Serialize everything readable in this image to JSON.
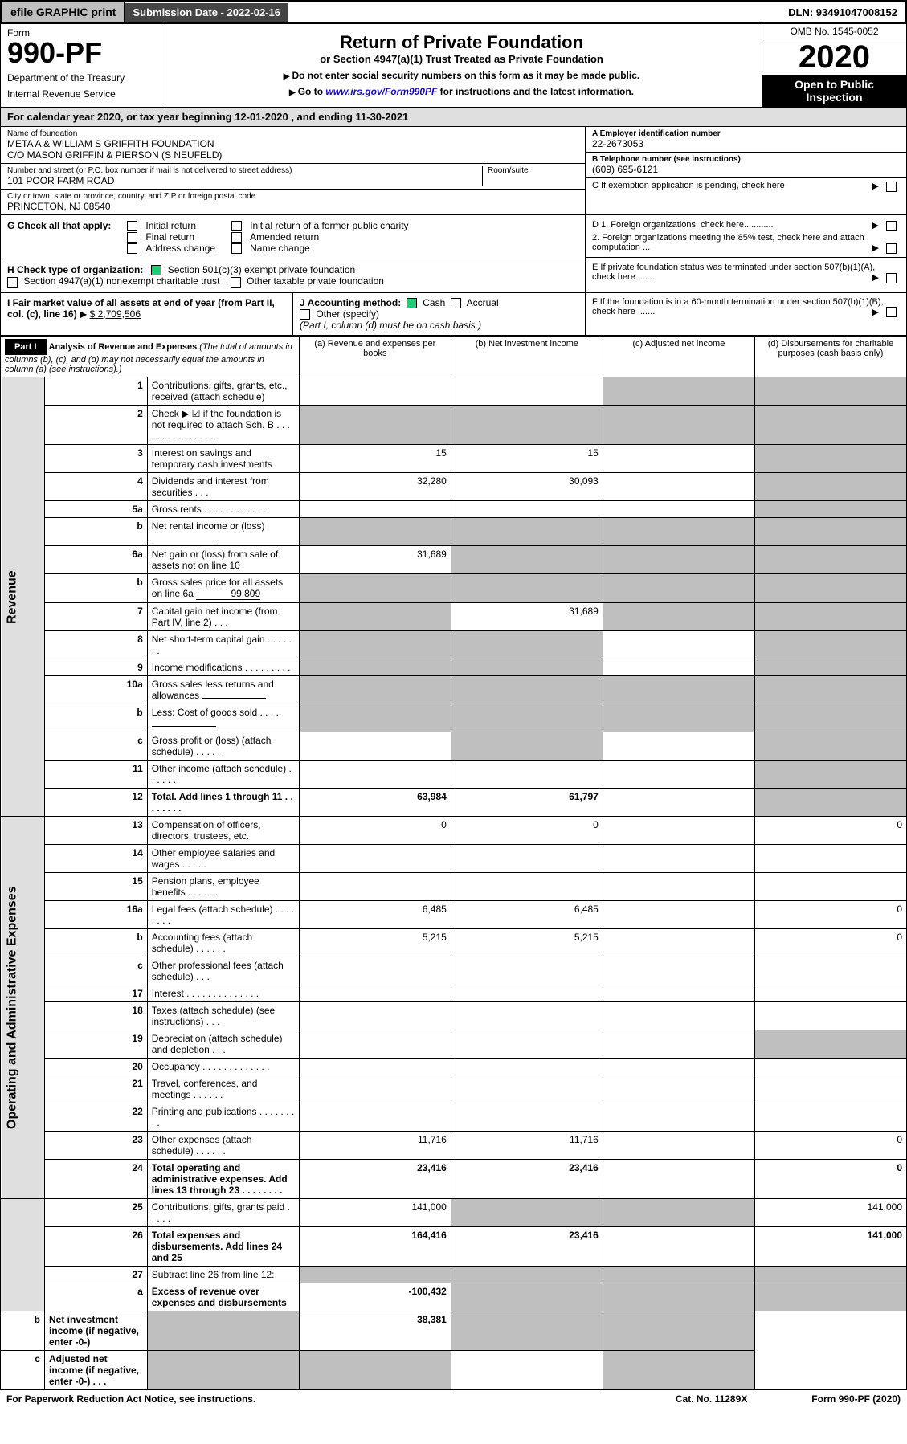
{
  "topbar": {
    "efile": "efile GRAPHIC print",
    "subdate_label": "Submission Date - 2022-02-16",
    "dln": "DLN: 93491047008152"
  },
  "header": {
    "form_label": "Form",
    "form_num": "990-PF",
    "dept": "Department of the Treasury",
    "irs": "Internal Revenue Service",
    "title": "Return of Private Foundation",
    "subtitle": "or Section 4947(a)(1) Trust Treated as Private Foundation",
    "instr1": "Do not enter social security numbers on this form as it may be made public.",
    "instr2_pre": "Go to ",
    "instr2_link": "www.irs.gov/Form990PF",
    "instr2_post": " for instructions and the latest information.",
    "omb": "OMB No. 1545-0052",
    "year": "2020",
    "open": "Open to Public Inspection"
  },
  "calyear": "For calendar year 2020, or tax year beginning 12-01-2020                               , and ending 11-30-2021",
  "entity": {
    "name_lab": "Name of foundation",
    "name": "META A & WILLIAM S GRIFFITH FOUNDATION",
    "name2": "C/O MASON GRIFFIN & PIERSON (S NEUFELD)",
    "addr_lab": "Number and street (or P.O. box number if mail is not delivered to street address)",
    "addr": "101 POOR FARM ROAD",
    "room_lab": "Room/suite",
    "city_lab": "City or town, state or province, country, and ZIP or foreign postal code",
    "city": "PRINCETON, NJ  08540",
    "a_lab": "A Employer identification number",
    "ein": "22-2673053",
    "b_lab": "B Telephone number (see instructions)",
    "phone": "(609) 695-6121",
    "c_lab": "C If exemption application is pending, check here"
  },
  "g": {
    "label": "G Check all that apply:",
    "opts": [
      "Initial return",
      "Final return",
      "Address change",
      "Initial return of a former public charity",
      "Amended return",
      "Name change"
    ],
    "d1": "D 1. Foreign organizations, check here............",
    "d2": "2. Foreign organizations meeting the 85% test, check here and attach computation ...",
    "e": "E   If private foundation status was terminated under section 507(b)(1)(A), check here .......",
    "h_lab": "H Check type of organization:",
    "h1": "Section 501(c)(3) exempt private foundation",
    "h2": "Section 4947(a)(1) nonexempt charitable trust",
    "h3": "Other taxable private foundation",
    "i_lab": "I Fair market value of all assets at end of year (from Part II, col. (c), line 16)",
    "i_val": "$  2,709,506",
    "j_lab": "J Accounting method:",
    "j_cash": "Cash",
    "j_acc": "Accrual",
    "j_other": "Other (specify)",
    "j_note": "(Part I, column (d) must be on cash basis.)",
    "f_lab": "F   If the foundation is in a 60-month termination under section 507(b)(1)(B), check here ......."
  },
  "part1": {
    "label": "Part I",
    "title": "Analysis of Revenue and Expenses",
    "note": " (The total of amounts in columns (b), (c), and (d) may not necessarily equal the amounts in column (a) (see instructions).)",
    "cols": {
      "a": "(a)  Revenue and expenses per books",
      "b": "(b)  Net investment income",
      "c": "(c)  Adjusted net income",
      "d": "(d)  Disbursements for charitable purposes (cash basis only)"
    },
    "sections": {
      "rev": "Revenue",
      "exp": "Operating and Administrative Expenses"
    },
    "rows": [
      {
        "n": "1",
        "d": "Contributions, gifts, grants, etc., received (attach schedule)",
        "shade_cd": true
      },
      {
        "n": "2",
        "d": "Check ▶ ☑ if the foundation is not required to attach Sch. B  .  .  .  .  .  .  .  .  .  .  .  .  .  .  .  .",
        "allshade": true
      },
      {
        "n": "3",
        "d": "Interest on savings and temporary cash investments",
        "a": "15",
        "b": "15"
      },
      {
        "n": "4",
        "d": "Dividends and interest from securities  .  .  .",
        "a": "32,280",
        "b": "30,093"
      },
      {
        "n": "5a",
        "d": "Gross rents  .  .  .  .  .  .  .  .  .  .  .  ."
      },
      {
        "n": "b",
        "d": "Net rental income or (loss)",
        "inline": true,
        "allshade": true
      },
      {
        "n": "6a",
        "d": "Net gain or (loss) from sale of assets not on line 10",
        "a": "31,689",
        "shade_bcd": true
      },
      {
        "n": "b",
        "d": "Gross sales price for all assets on line 6a",
        "inline": true,
        "inline_val": "99,809",
        "allshade": true
      },
      {
        "n": "7",
        "d": "Capital gain net income (from Part IV, line 2)  .  .  .",
        "b": "31,689",
        "shade_a": true,
        "shade_cd": true
      },
      {
        "n": "8",
        "d": "Net short-term capital gain  .  .  .  .  .  .  .",
        "shade_ab": true,
        "shade_d": true
      },
      {
        "n": "9",
        "d": "Income modifications  .  .  .  .  .  .  .  .  .",
        "shade_ab": true,
        "shade_d": true
      },
      {
        "n": "10a",
        "d": "Gross sales less returns and allowances",
        "inline": true,
        "allshade": true
      },
      {
        "n": "b",
        "d": "Less: Cost of goods sold  .  .  .  .",
        "inline": true,
        "allshade": true
      },
      {
        "n": "c",
        "d": "Gross profit or (loss) (attach schedule)  .  .  .  .  .",
        "shade_b": true,
        "shade_d": true
      },
      {
        "n": "11",
        "d": "Other income (attach schedule)  .  .  .  .  .  ."
      },
      {
        "n": "12",
        "d": "Total. Add lines 1 through 11  .  .  .  .  .  .  .  .",
        "a": "63,984",
        "b": "61,797",
        "bold": true,
        "shade_d": true
      },
      {
        "n": "13",
        "d": "Compensation of officers, directors, trustees, etc.",
        "a": "0",
        "b": "0",
        "dd": "0",
        "sec": "exp"
      },
      {
        "n": "14",
        "d": "Other employee salaries and wages  .  .  .  .  ."
      },
      {
        "n": "15",
        "d": "Pension plans, employee benefits  .  .  .  .  .  ."
      },
      {
        "n": "16a",
        "d": "Legal fees (attach schedule)  .  .  .  .  .  .  .  .",
        "a": "6,485",
        "b": "6,485",
        "dd": "0"
      },
      {
        "n": "b",
        "d": "Accounting fees (attach schedule)  .  .  .  .  .  .",
        "a": "5,215",
        "b": "5,215",
        "dd": "0"
      },
      {
        "n": "c",
        "d": "Other professional fees (attach schedule)  .  .  ."
      },
      {
        "n": "17",
        "d": "Interest  .  .  .  .  .  .  .  .  .  .  .  .  .  ."
      },
      {
        "n": "18",
        "d": "Taxes (attach schedule) (see instructions)  .  .  ."
      },
      {
        "n": "19",
        "d": "Depreciation (attach schedule) and depletion  .  .  .",
        "shade_d": true
      },
      {
        "n": "20",
        "d": "Occupancy  .  .  .  .  .  .  .  .  .  .  .  .  ."
      },
      {
        "n": "21",
        "d": "Travel, conferences, and meetings  .  .  .  .  .  ."
      },
      {
        "n": "22",
        "d": "Printing and publications  .  .  .  .  .  .  .  .  ."
      },
      {
        "n": "23",
        "d": "Other expenses (attach schedule)  .  .  .  .  .  .",
        "a": "11,716",
        "b": "11,716",
        "dd": "0"
      },
      {
        "n": "24",
        "d": "Total operating and administrative expenses. Add lines 13 through 23  .  .  .  .  .  .  .  .",
        "a": "23,416",
        "b": "23,416",
        "dd": "0",
        "bold": true
      },
      {
        "n": "25",
        "d": "Contributions, gifts, grants paid  .  .  .  .  .",
        "a": "141,000",
        "dd": "141,000",
        "shade_bc": true
      },
      {
        "n": "26",
        "d": "Total expenses and disbursements. Add lines 24 and 25",
        "a": "164,416",
        "b": "23,416",
        "dd": "141,000",
        "bold": true
      },
      {
        "n": "27",
        "d": "Subtract line 26 from line 12:",
        "allshade_after": true
      },
      {
        "n": "a",
        "d": "Excess of revenue over expenses and disbursements",
        "a": "-100,432",
        "bold": true,
        "shade_bcd": true
      },
      {
        "n": "b",
        "d": "Net investment income (if negative, enter -0-)",
        "b": "38,381",
        "bold": true,
        "shade_a": true,
        "shade_cd": true
      },
      {
        "n": "c",
        "d": "Adjusted net income (if negative, enter -0-)  .  .  .",
        "bold": true,
        "shade_ab": true,
        "shade_d": true
      }
    ]
  },
  "footer": {
    "pra": "For Paperwork Reduction Act Notice, see instructions.",
    "cat": "Cat. No. 11289X",
    "form": "Form 990-PF (2020)"
  }
}
